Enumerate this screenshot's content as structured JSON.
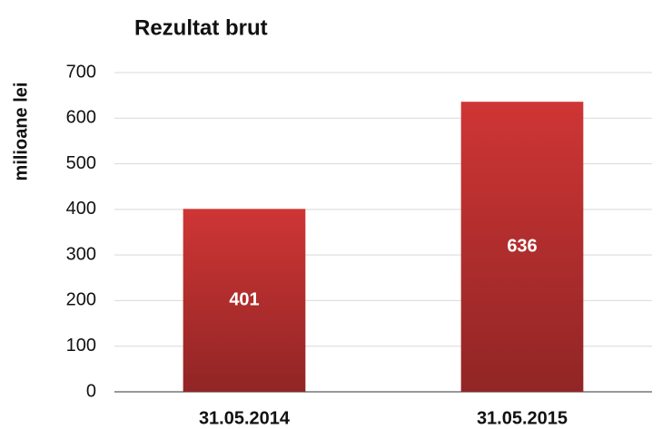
{
  "chart_data": {
    "type": "bar",
    "title": "Rezultat brut",
    "y_label": "milioane lei",
    "categories": [
      "31.05.2014",
      "31.05.2015"
    ],
    "values": [
      401,
      636
    ],
    "color": "#cf3535",
    "ylim": [
      0,
      700
    ],
    "yticks": [
      0,
      100,
      200,
      300,
      400,
      500,
      600,
      700
    ],
    "grid": true
  }
}
